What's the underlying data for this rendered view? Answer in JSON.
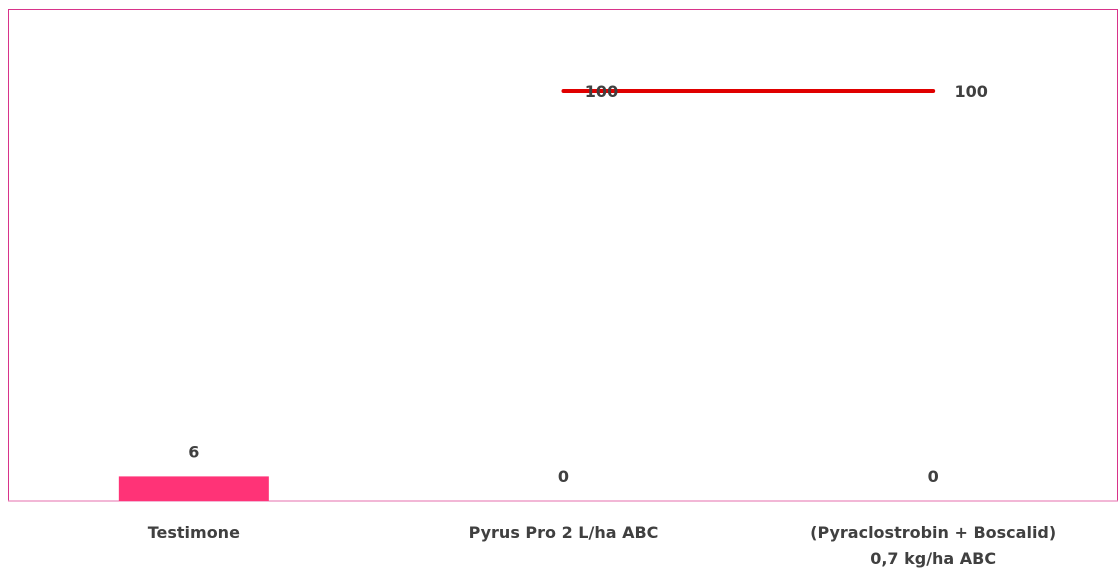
{
  "chart_data": {
    "type": "bar",
    "categories": [
      "Testimone",
      "Pyrus Pro 2 L/ha ABC",
      "(Pyraclostrobin + Boscalid) 0,7 kg/ha ABC"
    ],
    "category_lines": [
      [
        "Testimone"
      ],
      [
        "Pyrus Pro 2 L/ha ABC"
      ],
      [
        "(Pyraclostrobin + Boscalid)",
        "0,7 kg/ha ABC"
      ]
    ],
    "series": [
      {
        "type": "bar",
        "values": [
          6,
          0,
          0
        ],
        "color": "#ff3377"
      },
      {
        "type": "line",
        "values": [
          null,
          100,
          100
        ],
        "color": "#e00000"
      }
    ],
    "ylim": [
      0,
      120
    ],
    "grid": false,
    "legend": "none",
    "title": "",
    "xlabel": "",
    "ylabel": ""
  }
}
